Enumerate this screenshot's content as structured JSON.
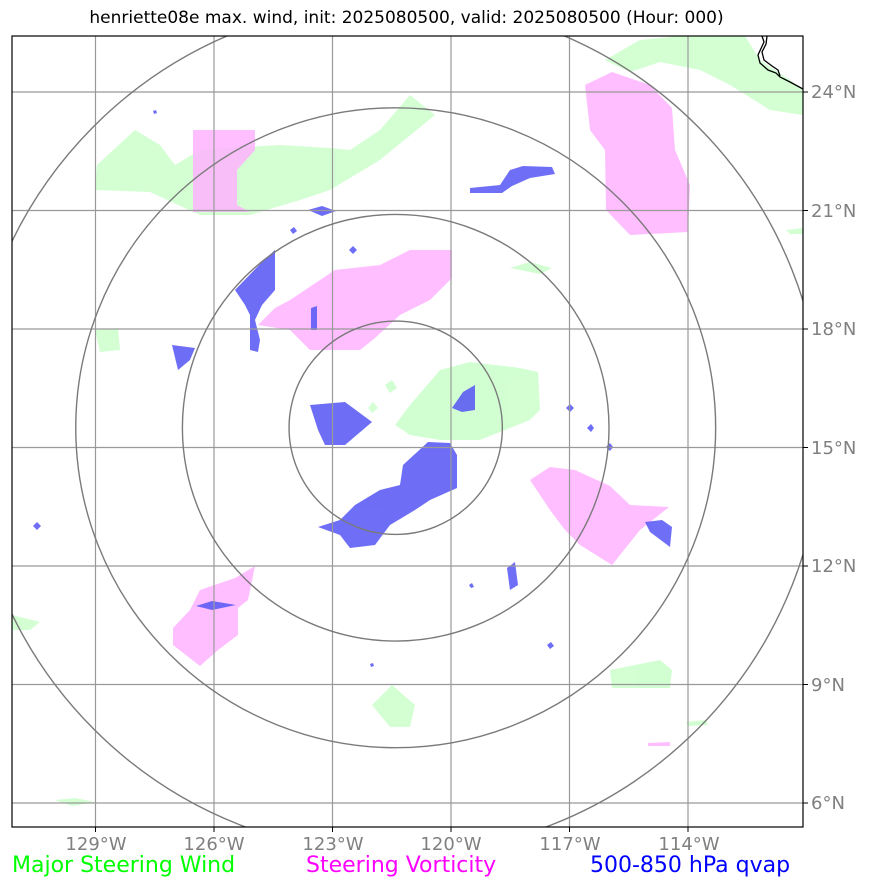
{
  "title": "henriette08e max. wind, init: 2025080500, valid: 2025080500 (Hour: 000)",
  "map": {
    "lon_labels": [
      "129°W",
      "126°W",
      "123°W",
      "120°W",
      "117°W",
      "114°W"
    ],
    "lat_labels": [
      "24°N",
      "21°N",
      "18°N",
      "15°N",
      "12°N",
      "9°N",
      "6°N"
    ],
    "center": {
      "lon": -121.4,
      "lat": 15.5
    },
    "range_rings_deg": [
      2.7,
      5.4,
      8.1,
      10.8
    ],
    "colors": {
      "major_steering_wind": "#c8ffc8",
      "steering_vorticity": "#ffb0ff",
      "qvap": "#5a5af5",
      "grid": "#999999",
      "rings": "#7a7a7a",
      "coastline": "#000000"
    }
  },
  "legend": {
    "major_steering_wind": {
      "label": "Major Steering Wind",
      "color": "#00ff00"
    },
    "steering_vorticity": {
      "label": "Steering Vorticity",
      "color": "#ff00ff"
    },
    "qvap": {
      "label": "500-850 hPa qvap",
      "color": "#0000ff"
    }
  }
}
